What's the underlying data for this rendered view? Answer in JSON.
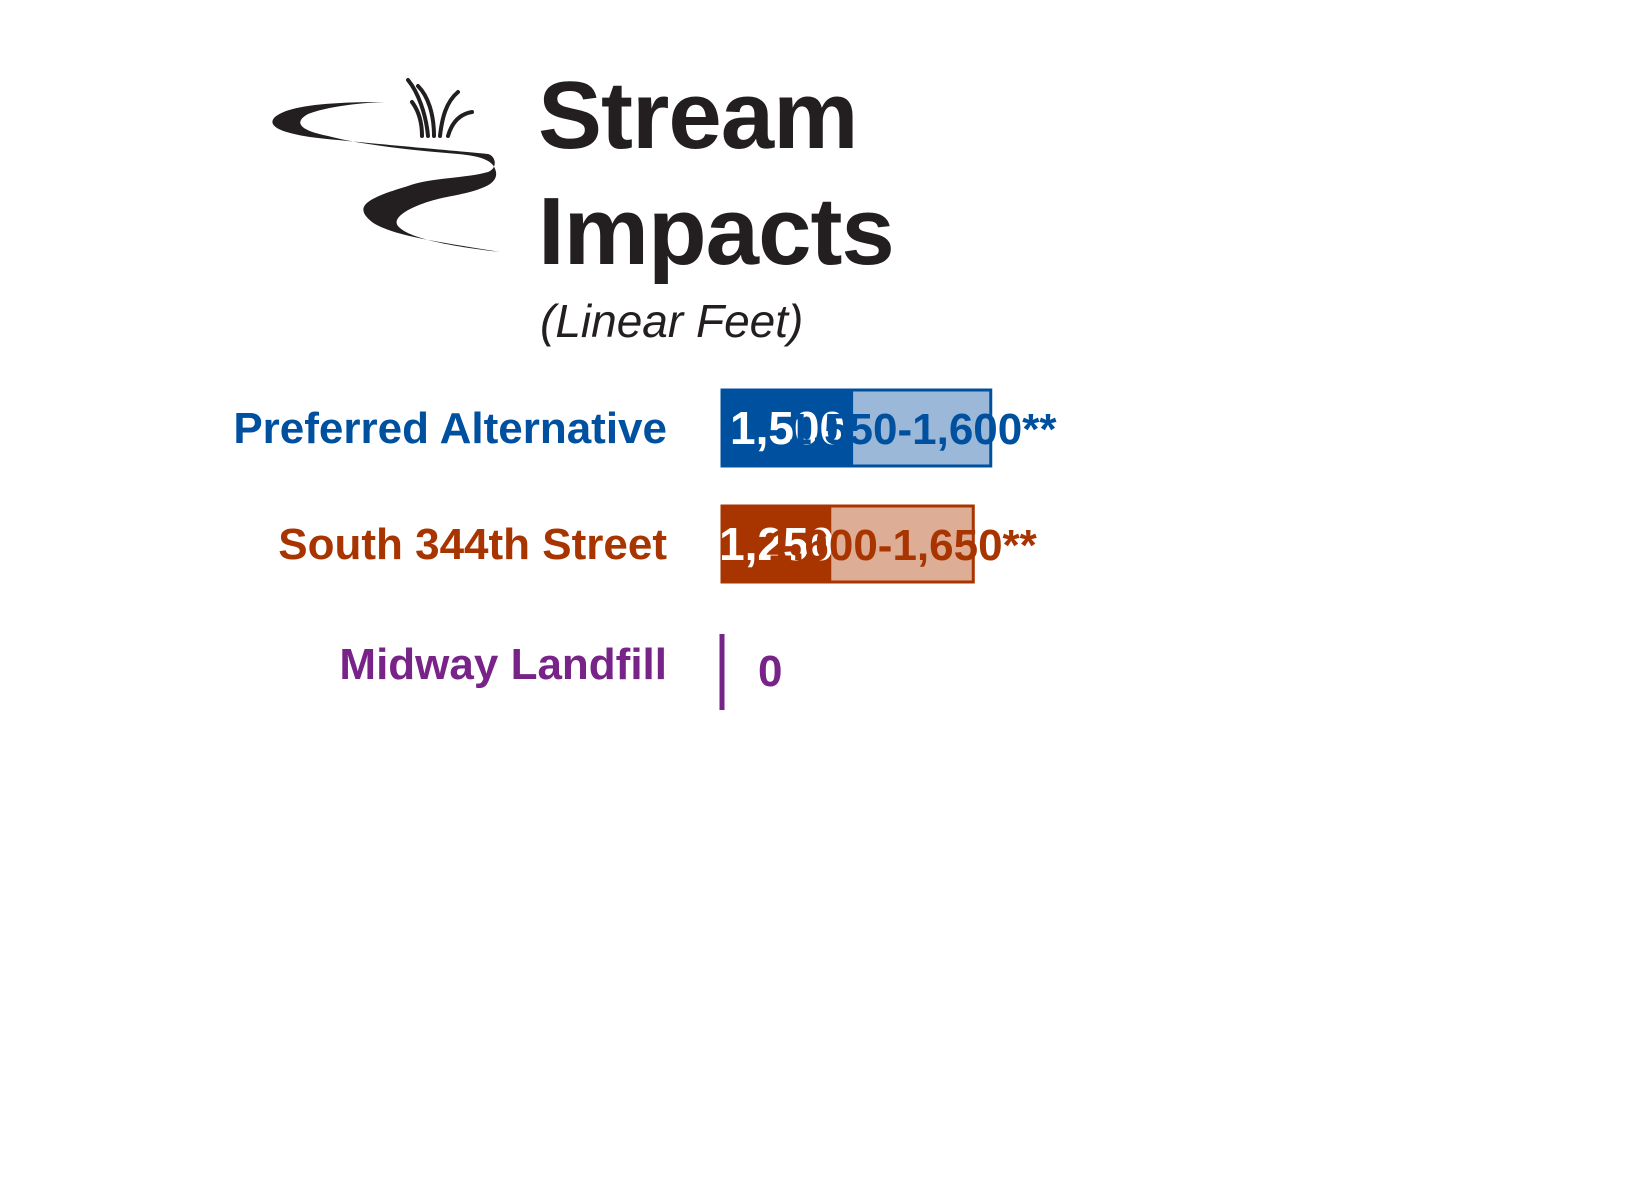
{
  "title": {
    "line1": "Stream",
    "line2": "Impacts",
    "subtitle": "(Linear Feet)"
  },
  "icon": "stream-with-grass-icon",
  "chart_data": {
    "type": "bar",
    "orientation": "horizontal",
    "stacked": true,
    "categories": [
      "Preferred Alternative",
      "South 344th Street",
      "Midway Landfill"
    ],
    "series": [
      {
        "values": [
          1500,
          1250,
          0
        ],
        "labels": [
          "1,500",
          "1,250",
          "0"
        ]
      },
      {
        "values": [
          1575,
          1625,
          0
        ],
        "labels": [
          "1,550-1,600**",
          "1,600-1,650**",
          ""
        ]
      }
    ],
    "colors": {
      "Preferred Alternative": {
        "dark": "#0050a0",
        "light": "#9bb8d8"
      },
      "South 344th Street": {
        "dark": "#a83500",
        "light": "#ddad95"
      },
      "Midway Landfill": {
        "dark": "#772388",
        "light": "#c9a6d0"
      }
    },
    "grid": false,
    "legend": "none"
  }
}
